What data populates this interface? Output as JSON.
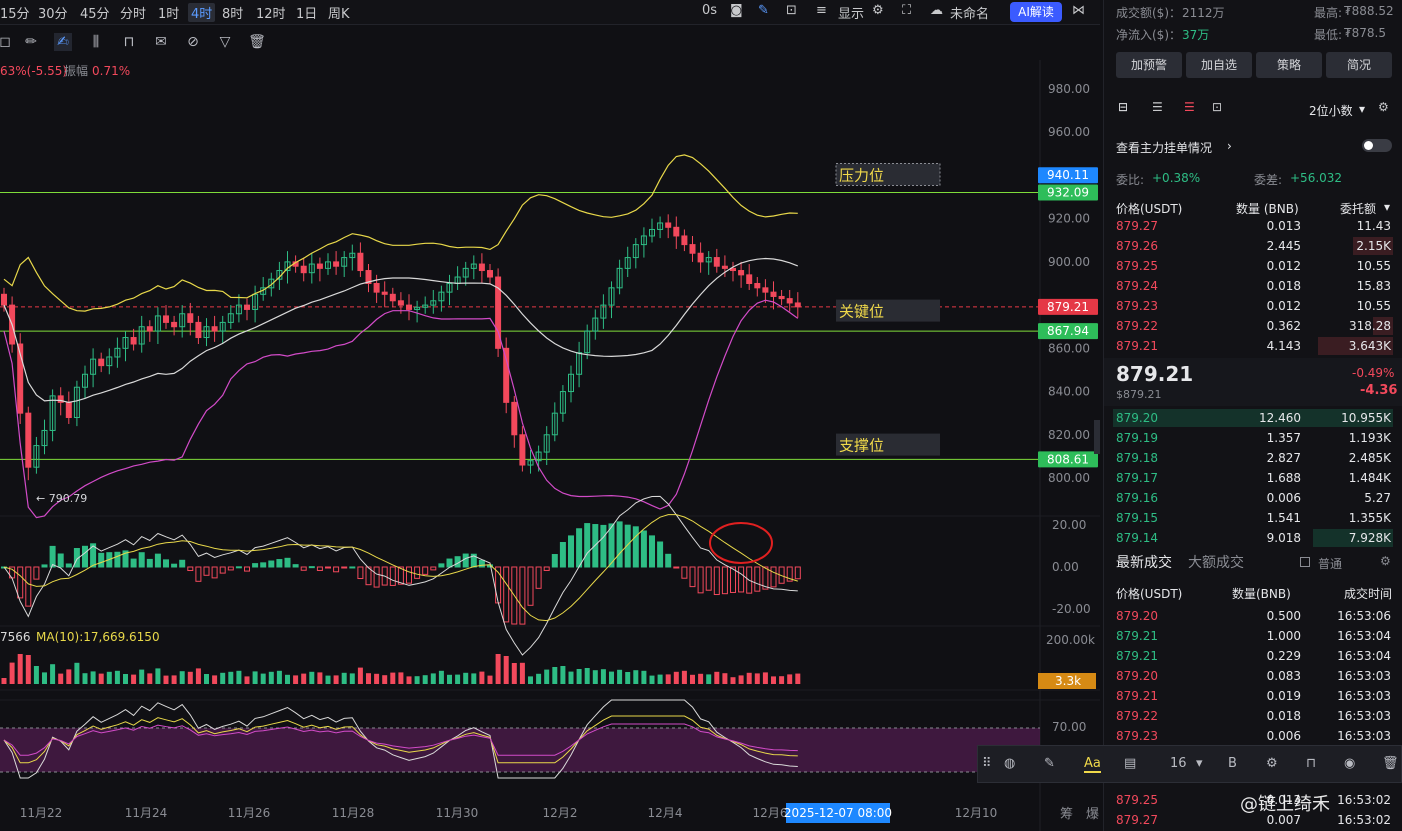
{
  "toolbar": {
    "timeframes": [
      "15分",
      "30分",
      "45分",
      "分时",
      "1时",
      "4时",
      "8时",
      "12时",
      "1日",
      "周K"
    ],
    "active_timeframe": "4时",
    "delay": "0s",
    "display_label": "显示",
    "layout_name": "未命名",
    "ai_label": "AI解读"
  },
  "legend": {
    "change": "63%(-5.55)",
    "amplitude_label": "振幅",
    "amplitude_value": "0.71%",
    "vol_prefix": "7566",
    "vol_ma": "MA(10):17,669.6150"
  },
  "chart_data": {
    "type": "candlestick",
    "price_axis": [
      980,
      960,
      940,
      920,
      900,
      880,
      860,
      840,
      820,
      800
    ],
    "price_axis_labels": [
      "980.00",
      "960.00",
      "940.00",
      "920.00",
      "900.00",
      "880.00",
      "860.00",
      "840.00",
      "820.00",
      "800.00"
    ],
    "macd_axis_labels": [
      "20.00",
      "0.00",
      "-20.00"
    ],
    "vol_axis_labels": [
      "200.00k"
    ],
    "rsi_axis_labels": [
      "70.00"
    ],
    "x_ticks": [
      "11月22",
      "11月24",
      "11月26",
      "11月28",
      "11月30",
      "12月2",
      "12月4",
      "12月6",
      "12月10"
    ],
    "cursor_date": "2025-12-07 08:00",
    "low_marker": "790.79",
    "price_tags": [
      {
        "value": 940.11,
        "label": "940.11",
        "color": "#1e88ff"
      },
      {
        "value": 932.09,
        "label": "932.09",
        "color": "#2ebd5a"
      },
      {
        "value": 879.21,
        "label": "879.21",
        "color": "#e53846"
      },
      {
        "value": 867.94,
        "label": "867.94",
        "color": "#2ebd5a"
      },
      {
        "value": 808.61,
        "label": "808.61",
        "color": "#2ebd5a"
      }
    ],
    "vol_tag": "3.3k",
    "annotations": [
      {
        "label": "压力位",
        "price": 940
      },
      {
        "label": "关键位",
        "price": 877
      },
      {
        "label": "支撑位",
        "price": 815
      }
    ],
    "horizontal_lines": [
      932.09,
      867.94,
      808.61
    ],
    "closes": [
      880,
      862,
      830,
      805,
      815,
      822,
      838,
      835,
      828,
      842,
      848,
      855,
      852,
      856,
      860,
      865,
      862,
      870,
      868,
      875,
      872,
      870,
      876,
      872,
      865,
      870,
      868,
      872,
      876,
      880,
      878,
      885,
      888,
      892,
      896,
      900,
      898,
      895,
      899,
      897,
      900,
      898,
      902,
      904,
      896,
      890,
      886,
      885,
      882,
      880,
      878,
      879,
      880,
      882,
      886,
      890,
      893,
      897,
      899,
      896,
      893,
      860,
      835,
      820,
      806,
      808,
      812,
      820,
      830,
      840,
      848,
      858,
      868,
      874,
      880,
      888,
      897,
      902,
      908,
      912,
      915,
      918,
      916,
      912,
      908,
      904,
      900,
      902,
      898,
      897,
      896,
      894,
      890,
      888,
      886,
      884,
      883,
      881,
      879.21
    ],
    "colors": {
      "up": "#2ebd85",
      "down": "#f2495c",
      "boll_upper": "#e8d84a",
      "boll_mid": "#d9d9d9",
      "boll_lower": "#d24bc8"
    }
  },
  "right_panel": {
    "turnover_label": "成交额($)：",
    "turnover_value": "2112万",
    "high_label": "最高:",
    "high_value": "₮888.52",
    "netflow_label": "净流入($)：",
    "netflow_value": "37万",
    "low_label": "最低:",
    "low_value": "₮878.5",
    "buttons": [
      "加预警",
      "加自选",
      "策略",
      "简况"
    ],
    "decimals": "2位小数",
    "main_orders": "查看主力挂单情况",
    "ratio_label": "委比:",
    "ratio_value": "+0.38%",
    "diff_label": "委差:",
    "diff_value": "+56.032",
    "ob_headers": [
      "价格(USDT)",
      "数量 (BNB)",
      "委托额"
    ],
    "asks": [
      [
        "879.27",
        "0.013",
        "11.43"
      ],
      [
        "879.26",
        "2.445",
        "2.15K"
      ],
      [
        "879.25",
        "0.012",
        "10.55"
      ],
      [
        "879.24",
        "0.018",
        "15.83"
      ],
      [
        "879.23",
        "0.012",
        "10.55"
      ],
      [
        "879.22",
        "0.362",
        "318.28"
      ],
      [
        "879.21",
        "4.143",
        "3.643K"
      ]
    ],
    "last_price": "879.21",
    "last_price_usd": "$879.21",
    "change_pct": "-0.49%",
    "change_abs": "-4.36",
    "bids": [
      [
        "879.20",
        "12.460",
        "10.955K"
      ],
      [
        "879.19",
        "1.357",
        "1.193K"
      ],
      [
        "879.18",
        "2.827",
        "2.485K"
      ],
      [
        "879.17",
        "1.688",
        "1.484K"
      ],
      [
        "879.16",
        "0.006",
        "5.27"
      ],
      [
        "879.15",
        "1.541",
        "1.355K"
      ],
      [
        "879.14",
        "9.018",
        "7.928K"
      ]
    ],
    "trade_tabs": [
      "最新成交",
      "大额成交"
    ],
    "normal_label": "普通",
    "trade_headers": [
      "价格(USDT)",
      "数量(BNB)",
      "成交时间"
    ],
    "trades": [
      [
        "879.20",
        "0.500",
        "16:53:06",
        "red"
      ],
      [
        "879.21",
        "1.000",
        "16:53:04",
        "green"
      ],
      [
        "879.21",
        "0.229",
        "16:53:04",
        "green"
      ],
      [
        "879.20",
        "0.083",
        "16:53:03",
        "red"
      ],
      [
        "879.21",
        "0.019",
        "16:53:03",
        "red"
      ],
      [
        "879.22",
        "0.018",
        "16:53:03",
        "red"
      ],
      [
        "879.23",
        "0.006",
        "16:53:03",
        "red"
      ],
      [
        "879.25",
        "0.013",
        "16:53:02",
        "red"
      ],
      [
        "879.27",
        "0.007",
        "16:53:02",
        "red"
      ]
    ]
  },
  "bottom_tools": {
    "font_size": "16",
    "bold": "B",
    "text": "Aa"
  },
  "watermark": "@链上绮禾",
  "bottom_right_labels": [
    "筹",
    "爆"
  ]
}
